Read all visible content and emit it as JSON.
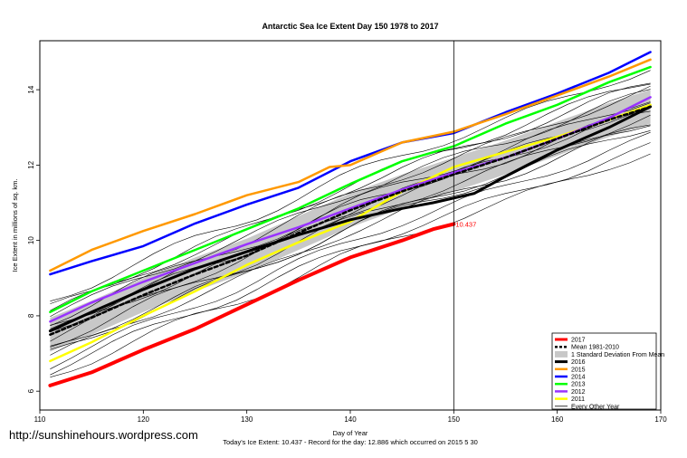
{
  "chart_data": {
    "type": "line",
    "title": "Antarctic Sea Ice Extent Day 150 1978 to 2017",
    "xlabel": "Day of Year",
    "ylabel": "Ice Extent in millions of sq. km.",
    "xlim": [
      110,
      170
    ],
    "ylim": [
      5.5,
      15.3
    ],
    "x_ticks": [
      "110",
      "120",
      "130",
      "140",
      "150",
      "160",
      "170"
    ],
    "y_ticks": [
      "6",
      "8",
      "10",
      "12",
      "14"
    ],
    "marker_day": 150,
    "current_value_label": "10.437",
    "legend_position": "bottom-right",
    "series": [
      {
        "name": "2017",
        "color": "#ff0000",
        "width": 4,
        "dash": "",
        "x": [
          111,
          115,
          120,
          125,
          130,
          135,
          140,
          145,
          148,
          150
        ],
        "y": [
          6.15,
          6.5,
          7.1,
          7.65,
          8.3,
          8.95,
          9.55,
          10.0,
          10.3,
          10.437
        ]
      },
      {
        "name": "Mean 1981-2010",
        "color": "#000000",
        "width": 2.5,
        "dash": "4,3",
        "x": [
          111,
          115,
          120,
          125,
          130,
          135,
          140,
          145,
          150,
          155,
          160,
          165,
          169
        ],
        "y": [
          7.5,
          7.95,
          8.55,
          9.1,
          9.6,
          10.2,
          10.8,
          11.3,
          11.75,
          12.2,
          12.7,
          13.2,
          13.55
        ]
      },
      {
        "name": "2016",
        "color": "#000000",
        "width": 3,
        "dash": "",
        "x": [
          111,
          115,
          120,
          125,
          130,
          135,
          140,
          145,
          148,
          152,
          155,
          160,
          165,
          169
        ],
        "y": [
          7.6,
          8.1,
          8.7,
          9.25,
          9.7,
          10.15,
          10.55,
          10.85,
          11.0,
          11.25,
          11.7,
          12.4,
          13.0,
          13.55
        ]
      },
      {
        "name": "2015",
        "color": "#ff9900",
        "width": 2.5,
        "dash": "",
        "x": [
          111,
          115,
          120,
          125,
          130,
          135,
          138,
          140,
          145,
          150,
          155,
          160,
          165,
          169
        ],
        "y": [
          9.2,
          9.75,
          10.25,
          10.7,
          11.2,
          11.55,
          11.95,
          12.0,
          12.6,
          12.886,
          13.35,
          13.85,
          14.35,
          14.8
        ]
      },
      {
        "name": "2014",
        "color": "#0000ff",
        "width": 2.5,
        "dash": "",
        "x": [
          111,
          115,
          120,
          125,
          130,
          135,
          140,
          145,
          150,
          155,
          160,
          165,
          169
        ],
        "y": [
          9.1,
          9.45,
          9.85,
          10.45,
          10.95,
          11.4,
          12.1,
          12.6,
          12.85,
          13.4,
          13.9,
          14.45,
          15.0
        ]
      },
      {
        "name": "2013",
        "color": "#00ff00",
        "width": 2.5,
        "dash": "",
        "x": [
          111,
          115,
          120,
          125,
          130,
          135,
          140,
          145,
          150,
          155,
          160,
          165,
          169
        ],
        "y": [
          8.1,
          8.65,
          9.2,
          9.75,
          10.3,
          10.85,
          11.5,
          12.1,
          12.5,
          13.1,
          13.6,
          14.2,
          14.6
        ]
      },
      {
        "name": "2012",
        "color": "#9933ff",
        "width": 2.5,
        "dash": "",
        "x": [
          111,
          115,
          120,
          125,
          130,
          135,
          140,
          145,
          150,
          155,
          160,
          165,
          169
        ],
        "y": [
          7.85,
          8.35,
          8.9,
          9.4,
          9.9,
          10.35,
          10.85,
          11.35,
          11.8,
          12.2,
          12.7,
          13.25,
          13.8
        ]
      },
      {
        "name": "2011",
        "color": "#ffff00",
        "width": 2.5,
        "dash": "",
        "x": [
          111,
          115,
          120,
          125,
          130,
          135,
          140,
          145,
          150,
          155,
          160,
          165,
          169
        ],
        "y": [
          6.8,
          7.3,
          8.0,
          8.65,
          9.35,
          9.95,
          10.5,
          11.3,
          11.95,
          12.35,
          12.75,
          13.2,
          13.6
        ]
      }
    ],
    "legend_extra": [
      "1 Standard Deviation From Mean",
      "Every Other Year"
    ]
  },
  "footer": {
    "url": "http://sunshinehours.wordpress.com",
    "todays_extent": "Today's Ice Extent: 10.437  - Record for the day: 12.886 which occurred on 2015 5 30"
  }
}
